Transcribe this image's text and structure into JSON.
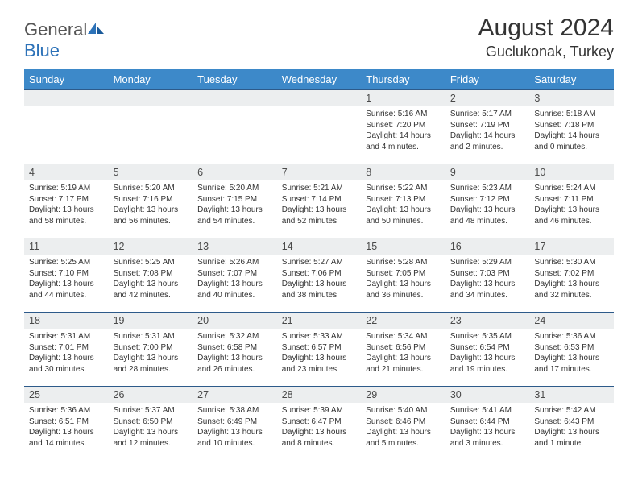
{
  "logo": {
    "text1": "General",
    "text2": "Blue"
  },
  "title": "August 2024",
  "location": "Guclukonak, Turkey",
  "colors": {
    "header_bg": "#3d89c9",
    "header_text": "#ffffff",
    "day_bg": "#eceeef",
    "row_border": "#2d5a8a",
    "logo_blue": "#2d72b8"
  },
  "weekdays": [
    "Sunday",
    "Monday",
    "Tuesday",
    "Wednesday",
    "Thursday",
    "Friday",
    "Saturday"
  ],
  "weeks": [
    [
      null,
      null,
      null,
      null,
      {
        "n": "1",
        "sr": "5:16 AM",
        "ss": "7:20 PM",
        "dl": "14 hours and 4 minutes."
      },
      {
        "n": "2",
        "sr": "5:17 AM",
        "ss": "7:19 PM",
        "dl": "14 hours and 2 minutes."
      },
      {
        "n": "3",
        "sr": "5:18 AM",
        "ss": "7:18 PM",
        "dl": "14 hours and 0 minutes."
      }
    ],
    [
      {
        "n": "4",
        "sr": "5:19 AM",
        "ss": "7:17 PM",
        "dl": "13 hours and 58 minutes."
      },
      {
        "n": "5",
        "sr": "5:20 AM",
        "ss": "7:16 PM",
        "dl": "13 hours and 56 minutes."
      },
      {
        "n": "6",
        "sr": "5:20 AM",
        "ss": "7:15 PM",
        "dl": "13 hours and 54 minutes."
      },
      {
        "n": "7",
        "sr": "5:21 AM",
        "ss": "7:14 PM",
        "dl": "13 hours and 52 minutes."
      },
      {
        "n": "8",
        "sr": "5:22 AM",
        "ss": "7:13 PM",
        "dl": "13 hours and 50 minutes."
      },
      {
        "n": "9",
        "sr": "5:23 AM",
        "ss": "7:12 PM",
        "dl": "13 hours and 48 minutes."
      },
      {
        "n": "10",
        "sr": "5:24 AM",
        "ss": "7:11 PM",
        "dl": "13 hours and 46 minutes."
      }
    ],
    [
      {
        "n": "11",
        "sr": "5:25 AM",
        "ss": "7:10 PM",
        "dl": "13 hours and 44 minutes."
      },
      {
        "n": "12",
        "sr": "5:25 AM",
        "ss": "7:08 PM",
        "dl": "13 hours and 42 minutes."
      },
      {
        "n": "13",
        "sr": "5:26 AM",
        "ss": "7:07 PM",
        "dl": "13 hours and 40 minutes."
      },
      {
        "n": "14",
        "sr": "5:27 AM",
        "ss": "7:06 PM",
        "dl": "13 hours and 38 minutes."
      },
      {
        "n": "15",
        "sr": "5:28 AM",
        "ss": "7:05 PM",
        "dl": "13 hours and 36 minutes."
      },
      {
        "n": "16",
        "sr": "5:29 AM",
        "ss": "7:03 PM",
        "dl": "13 hours and 34 minutes."
      },
      {
        "n": "17",
        "sr": "5:30 AM",
        "ss": "7:02 PM",
        "dl": "13 hours and 32 minutes."
      }
    ],
    [
      {
        "n": "18",
        "sr": "5:31 AM",
        "ss": "7:01 PM",
        "dl": "13 hours and 30 minutes."
      },
      {
        "n": "19",
        "sr": "5:31 AM",
        "ss": "7:00 PM",
        "dl": "13 hours and 28 minutes."
      },
      {
        "n": "20",
        "sr": "5:32 AM",
        "ss": "6:58 PM",
        "dl": "13 hours and 26 minutes."
      },
      {
        "n": "21",
        "sr": "5:33 AM",
        "ss": "6:57 PM",
        "dl": "13 hours and 23 minutes."
      },
      {
        "n": "22",
        "sr": "5:34 AM",
        "ss": "6:56 PM",
        "dl": "13 hours and 21 minutes."
      },
      {
        "n": "23",
        "sr": "5:35 AM",
        "ss": "6:54 PM",
        "dl": "13 hours and 19 minutes."
      },
      {
        "n": "24",
        "sr": "5:36 AM",
        "ss": "6:53 PM",
        "dl": "13 hours and 17 minutes."
      }
    ],
    [
      {
        "n": "25",
        "sr": "5:36 AM",
        "ss": "6:51 PM",
        "dl": "13 hours and 14 minutes."
      },
      {
        "n": "26",
        "sr": "5:37 AM",
        "ss": "6:50 PM",
        "dl": "13 hours and 12 minutes."
      },
      {
        "n": "27",
        "sr": "5:38 AM",
        "ss": "6:49 PM",
        "dl": "13 hours and 10 minutes."
      },
      {
        "n": "28",
        "sr": "5:39 AM",
        "ss": "6:47 PM",
        "dl": "13 hours and 8 minutes."
      },
      {
        "n": "29",
        "sr": "5:40 AM",
        "ss": "6:46 PM",
        "dl": "13 hours and 5 minutes."
      },
      {
        "n": "30",
        "sr": "5:41 AM",
        "ss": "6:44 PM",
        "dl": "13 hours and 3 minutes."
      },
      {
        "n": "31",
        "sr": "5:42 AM",
        "ss": "6:43 PM",
        "dl": "13 hours and 1 minute."
      }
    ]
  ],
  "labels": {
    "sunrise": "Sunrise: ",
    "sunset": "Sunset: ",
    "daylight": "Daylight: "
  }
}
